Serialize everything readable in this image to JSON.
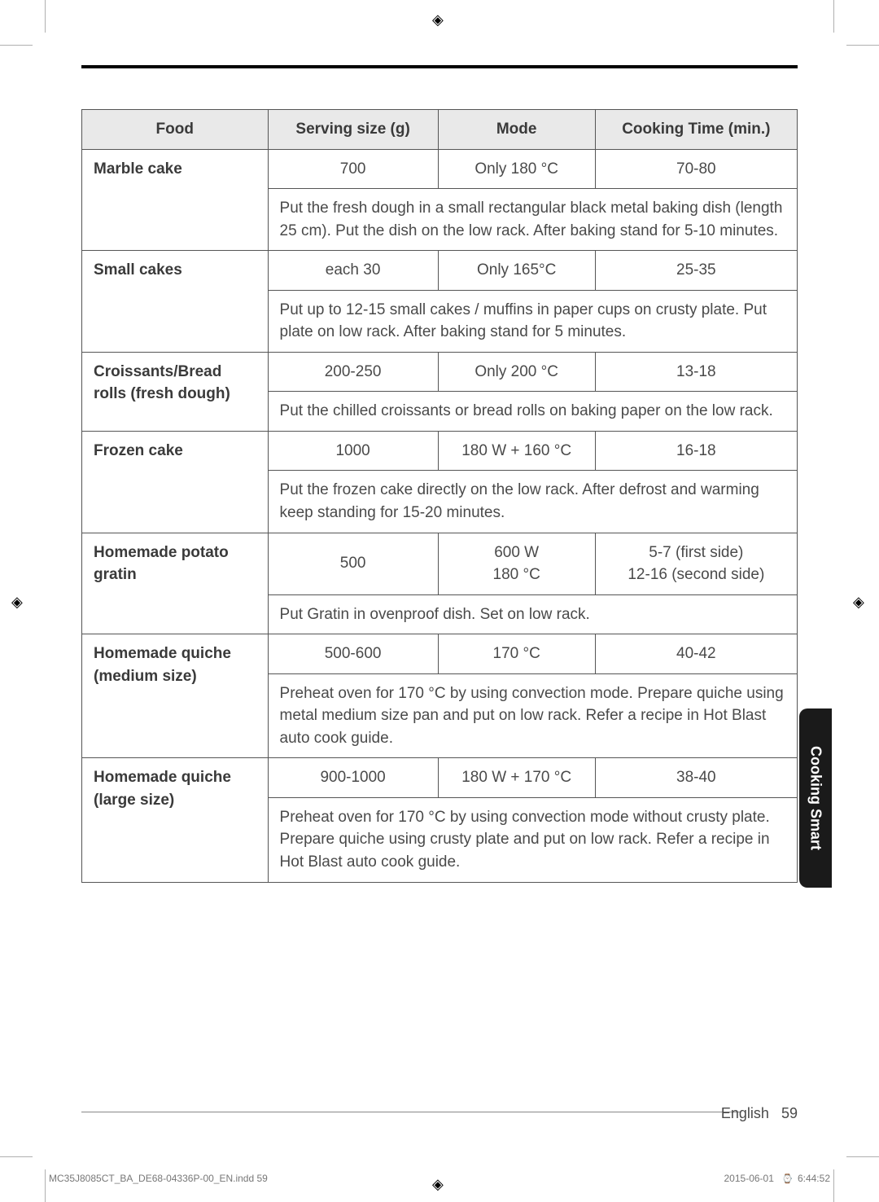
{
  "table": {
    "headers": {
      "food": "Food",
      "serving": "Serving size (g)",
      "mode": "Mode",
      "time": "Cooking Time (min.)"
    },
    "rows": {
      "marble": {
        "name": "Marble cake",
        "serving": "700",
        "mode": "Only 180 °C",
        "time": "70-80",
        "instr": "Put the fresh dough in a small rectangular black metal baking dish (length 25 cm). Put the dish on the low rack. After baking stand for 5-10 minutes."
      },
      "small": {
        "name": "Small cakes",
        "serving": "each 30",
        "mode": "Only 165°C",
        "time": "25-35",
        "instr": "Put up to 12-15 small cakes / muffins in paper cups on crusty plate. Put plate on low rack. After baking stand for 5 minutes."
      },
      "croissants": {
        "name": "Croissants/Bread rolls (fresh dough)",
        "serving": "200-250",
        "mode": "Only 200 °C",
        "time": "13-18",
        "instr": "Put the chilled croissants or bread rolls on baking paper on the low rack."
      },
      "frozen": {
        "name": "Frozen cake",
        "serving": "1000",
        "mode": "180 W + 160 °C",
        "time": "16-18",
        "instr": "Put the frozen cake directly on the low rack. After defrost and warming keep standing for 15-20 minutes."
      },
      "potato": {
        "name": "Homemade potato gratin",
        "serving": "500",
        "mode_line1": "600 W",
        "mode_line2": "180 °C",
        "time_line1": "5-7 (first side)",
        "time_line2": "12-16 (second side)",
        "instr": "Put Gratin in ovenproof dish. Set on low rack."
      },
      "quiche_m": {
        "name": "Homemade quiche (medium size)",
        "serving": "500-600",
        "mode": "170 °C",
        "time": "40-42",
        "instr": "Preheat oven for 170 °C by using convection mode. Prepare quiche using metal medium size pan and put on low rack. Refer a recipe in Hot Blast auto cook guide."
      },
      "quiche_l": {
        "name": "Homemade quiche (large size)",
        "serving": "900-1000",
        "mode": "180 W + 170 °C",
        "time": "38-40",
        "instr": "Preheat oven for 170 °C by using convection mode without crusty plate. Prepare quiche using crusty plate and put on low rack. Refer a recipe in Hot Blast auto cook guide."
      }
    }
  },
  "side_tab": "Cooking Smart",
  "page_label_lang": "English",
  "page_label_num": "59",
  "footer_left": "MC35J8085CT_BA_DE68-04336P-00_EN.indd   59",
  "footer_right_date": "2015-06-01",
  "footer_right_time": "6:44:52"
}
